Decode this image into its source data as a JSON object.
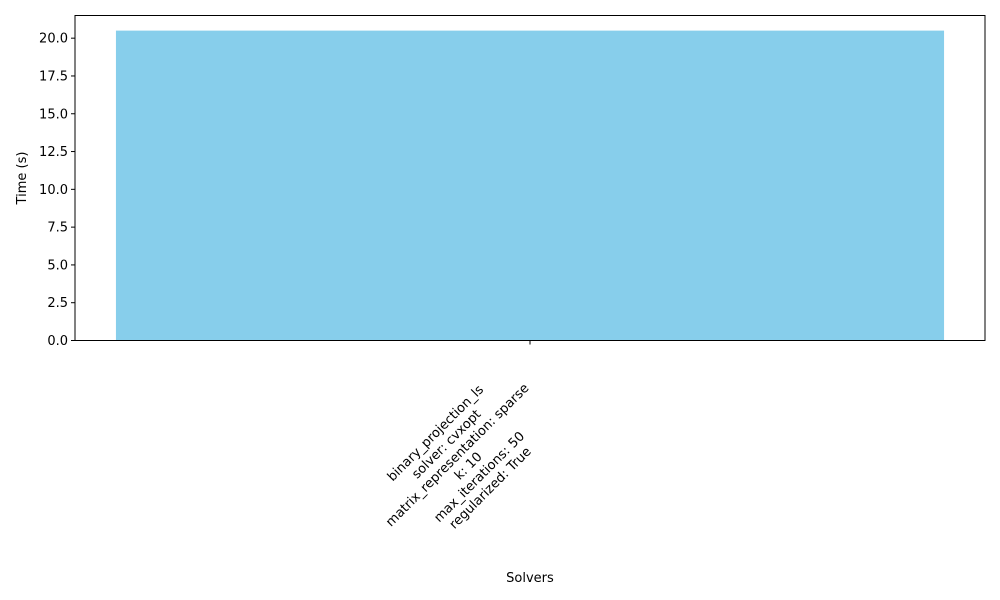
{
  "chart_data": {
    "type": "bar",
    "categories": [
      "binary_projection_ls\nsolver: cvxopt\nmatrix_representation: sparse\nk: 10\nmax_iterations: 50\nregularized: True"
    ],
    "values": [
      20.5
    ],
    "title": "",
    "xlabel": "Solvers",
    "ylabel": "Time (s)",
    "ylim": [
      0,
      21.5
    ],
    "yticks": [
      "0.0",
      "2.5",
      "5.0",
      "7.5",
      "10.0",
      "12.5",
      "15.0",
      "17.5",
      "20.0"
    ],
    "grid": false,
    "bar_color": "#87ceeb",
    "xtick_rotation_deg": 45
  }
}
